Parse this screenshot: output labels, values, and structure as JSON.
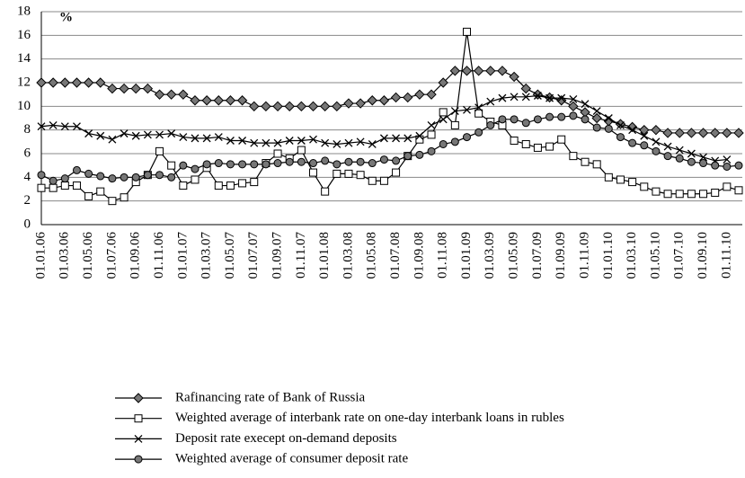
{
  "chart_data": {
    "type": "line",
    "y_label": "%",
    "categories": [
      "01.01.06",
      null,
      "01.03.06",
      null,
      "01.05.06",
      null,
      "01.07.06",
      null,
      "01.09.06",
      null,
      "01.11.06",
      null,
      "01.01.07",
      null,
      "01.03.07",
      null,
      "01.05.07",
      null,
      "01.07.07",
      null,
      "01.09.07",
      null,
      "01.11.07",
      null,
      "01.01.08",
      null,
      "01.03.08",
      null,
      "01.05.08",
      null,
      "01.07.08",
      null,
      "01.09.08",
      null,
      "01.11.08",
      null,
      "01.01.09",
      null,
      "01.03.09",
      null,
      "01.05.09",
      null,
      "01.07.09",
      null,
      "01.09.09",
      null,
      "01.11.09",
      null,
      "01.01.10",
      null,
      "01.03.10",
      null,
      "01.05.10",
      null,
      "01.07.10",
      null,
      "01.09.10",
      null,
      "01.11.10",
      null
    ],
    "series": [
      {
        "name": "Rafinancing rate of Bank of Russia",
        "color": "#000000",
        "marker": "diamond",
        "values": [
          12,
          12,
          12,
          12,
          12,
          12,
          11.5,
          11.5,
          11.5,
          11.5,
          11,
          11,
          11,
          10.5,
          10.5,
          10.5,
          10.5,
          10.5,
          10,
          10,
          10,
          10,
          10,
          10,
          10,
          10,
          10.25,
          10.25,
          10.5,
          10.5,
          10.75,
          10.75,
          11,
          11,
          12,
          13,
          13,
          13,
          13,
          13,
          12.5,
          11.5,
          11,
          10.75,
          10.5,
          10,
          9.5,
          9,
          8.75,
          8.5,
          8.25,
          8,
          8,
          7.75,
          7.75,
          7.75,
          7.75,
          7.75,
          7.75,
          7.75
        ]
      },
      {
        "name": "Weighted average of interbank rate on one-day interbank loans in rubles",
        "color": "#000000",
        "marker": "square",
        "values": [
          3.1,
          3.1,
          3.3,
          3.3,
          2.4,
          2.8,
          2.0,
          2.3,
          3.6,
          4.2,
          6.2,
          5.0,
          3.3,
          3.8,
          4.8,
          3.3,
          3.3,
          3.5,
          3.6,
          5.2,
          6.0,
          5.6,
          6.3,
          4.4,
          2.8,
          4.3,
          4.3,
          4.2,
          3.7,
          3.7,
          4.4,
          5.8,
          7.2,
          7.6,
          9.5,
          8.4,
          16.3,
          9.4,
          8.7,
          8.4,
          7.1,
          6.8,
          6.5,
          6.6,
          7.2,
          5.8,
          5.3,
          5.1,
          4.0,
          3.8,
          3.6,
          3.2,
          2.8,
          2.6,
          2.6,
          2.6,
          2.6,
          2.7,
          3.2,
          2.9
        ]
      },
      {
        "name": "Deposit rate execept on-demand deposits",
        "color": "#000000",
        "marker": "x",
        "values": [
          8.3,
          8.4,
          8.3,
          8.3,
          7.7,
          7.5,
          7.2,
          7.7,
          7.5,
          7.6,
          7.6,
          7.7,
          7.4,
          7.3,
          7.3,
          7.4,
          7.1,
          7.1,
          6.9,
          6.9,
          6.9,
          7.1,
          7.1,
          7.2,
          6.9,
          6.8,
          6.9,
          7.0,
          6.8,
          7.3,
          7.3,
          7.3,
          7.5,
          8.4,
          8.9,
          9.6,
          9.7,
          9.9,
          10.4,
          10.7,
          10.8,
          10.8,
          10.9,
          10.7,
          10.7,
          10.6,
          10.2,
          9.6,
          9.0,
          8.4,
          8.0,
          7.5,
          7.0,
          6.6,
          6.3,
          6.0,
          5.7,
          5.4,
          5.5,
          null
        ]
      },
      {
        "name": "Weighted average of consumer deposit rate",
        "color": "#000000",
        "marker": "circle",
        "values": [
          4.2,
          3.7,
          3.9,
          4.6,
          4.3,
          4.1,
          3.9,
          4.0,
          4.0,
          4.2,
          4.2,
          4.0,
          5.0,
          4.7,
          5.1,
          5.2,
          5.1,
          5.1,
          5.1,
          5.1,
          5.2,
          5.3,
          5.3,
          5.2,
          5.4,
          5.1,
          5.3,
          5.3,
          5.2,
          5.5,
          5.4,
          5.8,
          5.9,
          6.2,
          6.8,
          7.0,
          7.4,
          7.8,
          8.4,
          8.9,
          8.9,
          8.6,
          8.9,
          9.1,
          9.1,
          9.2,
          8.9,
          8.2,
          8.1,
          7.4,
          6.9,
          6.7,
          6.2,
          5.8,
          5.6,
          5.3,
          5.2,
          5.0,
          4.9,
          5.0
        ]
      }
    ],
    "ylim": [
      0,
      18
    ],
    "yticks": [
      0,
      2,
      4,
      6,
      8,
      10,
      12,
      14,
      16,
      18
    ],
    "grid": true
  }
}
